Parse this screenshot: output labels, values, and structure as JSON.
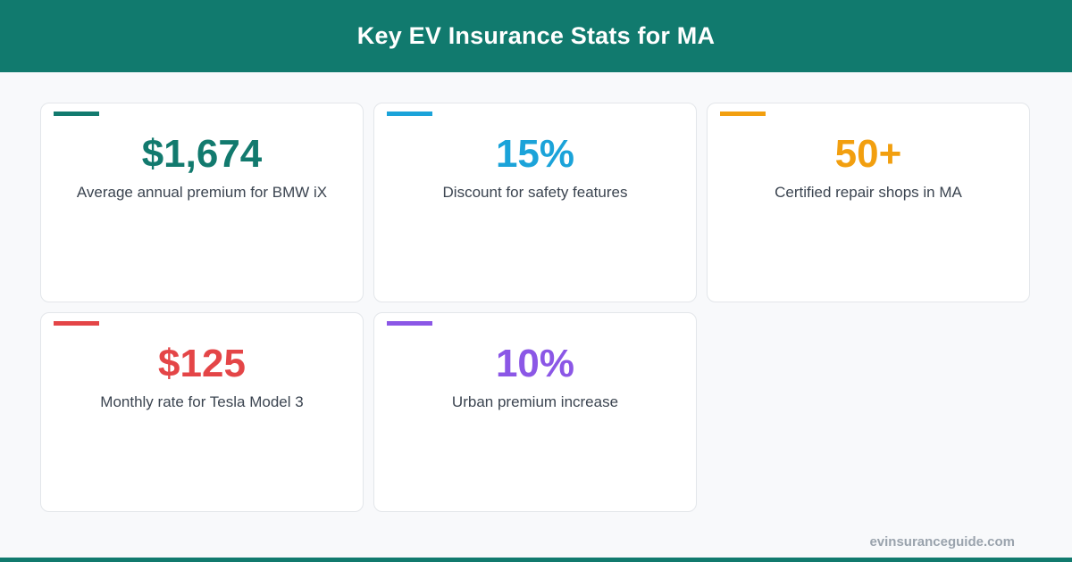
{
  "header": {
    "title": "Key EV Insurance Stats for MA"
  },
  "cards": [
    {
      "value": "$1,674",
      "label": "Average annual premium for BMW iX",
      "color": "#127a6e"
    },
    {
      "value": "15%",
      "label": "Discount for safety features",
      "color": "#1ba3d9"
    },
    {
      "value": "50+",
      "label": "Certified repair shops in MA",
      "color": "#f29f0f"
    },
    {
      "value": "$125",
      "label": "Monthly rate for Tesla Model 3",
      "color": "#e44547"
    },
    {
      "value": "10%",
      "label": "Urban premium increase",
      "color": "#8b57e6"
    }
  ],
  "footer": {
    "site": "evinsuranceguide.com"
  },
  "colors": {
    "brand": "#117a6e",
    "background": "#f8f9fb",
    "label_text": "#3b4450",
    "footer_text": "#9aa3ad"
  }
}
